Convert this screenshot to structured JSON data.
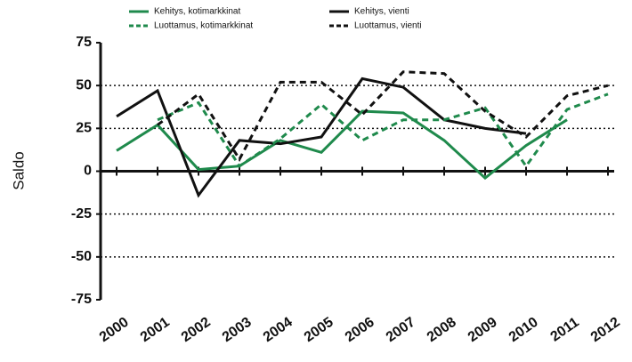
{
  "chart_data": {
    "type": "line",
    "y_label": "Saldo",
    "categories": [
      "2000",
      "2001",
      "2002",
      "2003",
      "2004",
      "2005",
      "2006",
      "2007",
      "2008",
      "2009",
      "2010",
      "2011",
      "2012"
    ],
    "series": [
      {
        "name": "Kehitys, kotimarkkinat",
        "color": "#1f8a4c",
        "dash": false,
        "values": [
          12,
          27,
          1,
          3,
          18,
          11,
          35,
          34,
          18,
          -4,
          15,
          30,
          null
        ]
      },
      {
        "name": "Kehitys, vienti",
        "color": "#111111",
        "dash": false,
        "values": [
          32,
          47,
          -14,
          18,
          16,
          20,
          54,
          49,
          30,
          25,
          22,
          null,
          null
        ]
      },
      {
        "name": "Luottamus, kotimarkkinat",
        "color": "#1f8a4c",
        "dash": true,
        "values": [
          null,
          30,
          40,
          3,
          19,
          39,
          18,
          30,
          30,
          37,
          3,
          36,
          45
        ]
      },
      {
        "name": "Luottamus, vienti",
        "color": "#111111",
        "dash": true,
        "values": [
          null,
          27,
          45,
          7,
          52,
          52,
          33,
          58,
          57,
          35,
          20,
          44,
          50
        ]
      }
    ],
    "ylim": [
      -75,
      75
    ],
    "yticks": [
      -75,
      -50,
      -25,
      0,
      25,
      50,
      75
    ],
    "grid": true
  }
}
